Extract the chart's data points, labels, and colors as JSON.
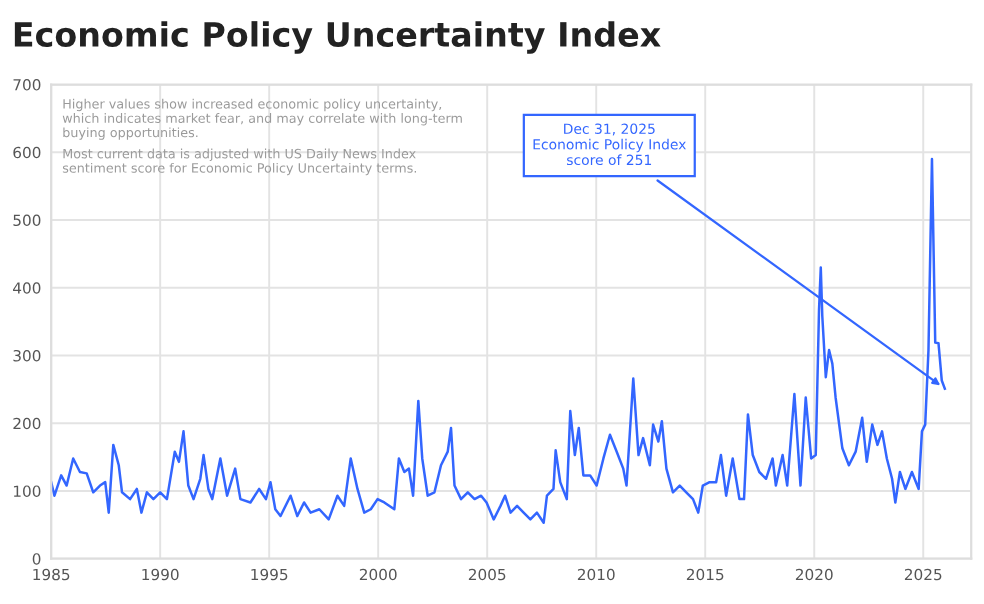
{
  "chart_data": {
    "type": "line",
    "title": "Economic Policy Uncertainty Index",
    "x": [
      1985.0,
      1985.15,
      1985.46,
      1985.71,
      1986.01,
      1986.32,
      1986.63,
      1986.93,
      1987.24,
      1987.48,
      1987.64,
      1987.85,
      1988.1,
      1988.25,
      1988.62,
      1988.93,
      1989.14,
      1989.39,
      1989.69,
      1990.0,
      1990.31,
      1990.67,
      1990.86,
      1991.07,
      1991.29,
      1991.53,
      1991.84,
      1991.99,
      1992.21,
      1992.39,
      1992.76,
      1993.07,
      1993.44,
      1993.68,
      1994.14,
      1994.54,
      1994.85,
      1995.06,
      1995.28,
      1995.52,
      1995.98,
      1996.29,
      1996.6,
      1996.9,
      1997.3,
      1997.73,
      1998.13,
      1998.44,
      1998.74,
      1999.05,
      1999.36,
      1999.66,
      1999.97,
      2000.28,
      2000.74,
      2000.95,
      2001.2,
      2001.41,
      2001.6,
      2001.84,
      2002.02,
      2002.27,
      2002.58,
      2002.88,
      2003.19,
      2003.34,
      2003.5,
      2003.8,
      2004.11,
      2004.42,
      2004.72,
      2004.97,
      2005.3,
      2005.61,
      2005.82,
      2006.07,
      2006.37,
      2006.67,
      2006.98,
      2007.28,
      2007.59,
      2007.74,
      2008.04,
      2008.14,
      2008.35,
      2008.65,
      2008.81,
      2009.02,
      2009.2,
      2009.41,
      2009.72,
      2010.02,
      2010.33,
      2010.63,
      2010.94,
      2011.24,
      2011.39,
      2011.7,
      2011.94,
      2012.15,
      2012.46,
      2012.61,
      2012.85,
      2013.01,
      2013.22,
      2013.52,
      2013.83,
      2014.13,
      2014.44,
      2014.68,
      2014.89,
      2015.2,
      2015.5,
      2015.72,
      2015.96,
      2016.26,
      2016.57,
      2016.78,
      2016.96,
      2017.18,
      2017.48,
      2017.79,
      2018.09,
      2018.24,
      2018.55,
      2018.76,
      2019.09,
      2019.37,
      2019.61,
      2019.86,
      2020.07,
      2020.22,
      2020.3,
      2020.37,
      2020.53,
      2020.68,
      2020.83,
      2020.98,
      2021.29,
      2021.59,
      2021.9,
      2022.2,
      2022.41,
      2022.66,
      2022.9,
      2023.11,
      2023.33,
      2023.57,
      2023.72,
      2023.93,
      2024.18,
      2024.48,
      2024.79,
      2024.94,
      2025.09,
      2025.24,
      2025.4,
      2025.55,
      2025.7,
      2025.85,
      2025.99
    ],
    "series": [
      {
        "color": "#3366ff",
        "values": [
          113,
          93,
          123,
          108,
          148,
          128,
          126,
          98,
          108,
          113,
          68,
          168,
          138,
          98,
          88,
          103,
          68,
          98,
          88,
          98,
          88,
          158,
          143,
          188,
          108,
          88,
          118,
          153,
          103,
          88,
          148,
          93,
          133,
          88,
          83,
          103,
          88,
          113,
          73,
          63,
          93,
          63,
          83,
          68,
          73,
          58,
          93,
          78,
          148,
          103,
          68,
          73,
          88,
          83,
          73,
          148,
          128,
          133,
          93,
          233,
          148,
          93,
          98,
          138,
          158,
          193,
          108,
          88,
          98,
          88,
          93,
          83,
          58,
          78,
          93,
          68,
          78,
          68,
          58,
          68,
          53,
          93,
          103,
          160,
          113,
          88,
          218,
          153,
          193,
          123,
          123,
          108,
          148,
          183,
          158,
          133,
          108,
          266,
          153,
          178,
          138,
          198,
          173,
          203,
          133,
          98,
          108,
          98,
          88,
          68,
          108,
          113,
          113,
          153,
          93,
          148,
          88,
          88,
          213,
          153,
          128,
          118,
          148,
          108,
          153,
          108,
          243,
          108,
          238,
          148,
          153,
          368,
          430,
          358,
          268,
          308,
          288,
          238,
          163,
          138,
          158,
          208,
          143,
          198,
          168,
          188,
          148,
          118,
          83,
          128,
          103,
          128,
          103,
          188,
          198,
          308,
          590,
          319,
          318,
          263,
          251
        ]
      }
    ],
    "xlim": [
      1985,
      2027.2
    ],
    "xticks": [
      1985,
      1990,
      1995,
      2000,
      2005,
      2010,
      2015,
      2020,
      2025
    ],
    "ylim": [
      0,
      700
    ],
    "yticks": [
      0,
      100,
      200,
      300,
      400,
      500,
      600,
      700
    ],
    "grid": true,
    "annotations": [
      "Higher values show increased economic policy uncertainty, which indicates market fear, and may correlate with long-term buying opportunities.",
      "Most current data is adjusted with US Daily News Index sentiment score for Economic Policy Uncertainty terms.",
      {
        "text": "Dec 31, 2025\nEconomic Policy Index\nscore of 251",
        "x": 2025.99,
        "y": 251
      }
    ]
  }
}
